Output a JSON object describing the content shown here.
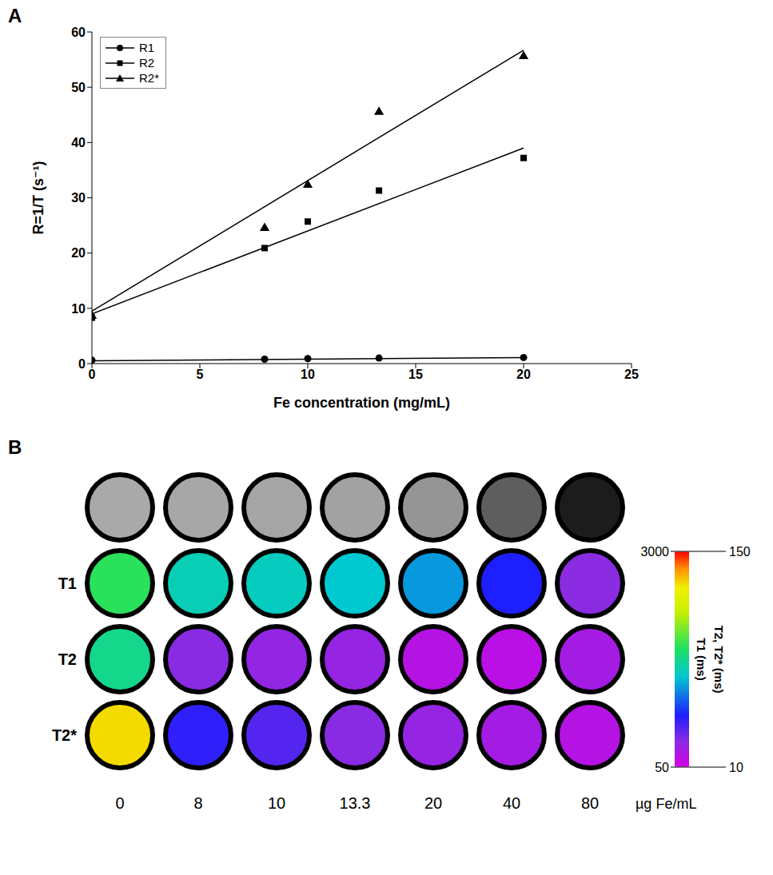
{
  "chart_data": [
    {
      "panel": "A",
      "type": "scatter",
      "x_label": "Fe concentration (mg/mL)",
      "y_label": "R=1/T (s⁻¹)",
      "x": [
        0,
        8,
        10,
        13.3,
        20
      ],
      "fit_x": [
        0,
        20
      ],
      "series": [
        {
          "name": "R1",
          "color": "#000000",
          "marker": "circle",
          "values": [
            0.6,
            0.8,
            0.9,
            1.0,
            1.1
          ],
          "fit": [
            0.5,
            1.1
          ]
        },
        {
          "name": "R2",
          "color": "#000000",
          "marker": "square",
          "values": [
            8.3,
            20.9,
            25.7,
            31.3,
            37.2
          ],
          "fit": [
            9.0,
            39.0
          ]
        },
        {
          "name": "R2*",
          "color": "#000000",
          "marker": "triangle",
          "values": [
            8.6,
            24.5,
            32.3,
            45.5,
            55.6
          ],
          "fit": [
            9.5,
            56.7
          ]
        }
      ],
      "xlim": [
        0,
        25
      ],
      "xticks": [
        0,
        5,
        10,
        15,
        20,
        25
      ],
      "ylim": [
        0,
        60
      ],
      "yticks": [
        0,
        10,
        20,
        30,
        40,
        50,
        60
      ],
      "grid": false,
      "legend": "upper left"
    },
    {
      "panel": "B",
      "type": "heatmap",
      "columns": [
        0,
        8,
        10,
        13.3,
        20,
        40,
        80
      ],
      "column_unit": "µg Fe/mL",
      "rows": [
        {
          "name": null,
          "colors": [
            "#a9a9a9",
            "#a7a7a7",
            "#a5a5a5",
            "#a2a2a2",
            "#959595",
            "#5e5e5e",
            "#1c1c1c"
          ]
        },
        {
          "name": "T1",
          "values": [
            1700,
            1380,
            1350,
            1290,
            1140,
            760,
            400
          ]
        },
        {
          "name": "T2",
          "values": [
            80,
            27,
            25,
            24,
            17,
            16,
            21
          ]
        },
        {
          "name": "T2*",
          "values": [
            129,
            41,
            35,
            27,
            24,
            21,
            17
          ]
        }
      ],
      "colorbar": [
        {
          "label": "T1 (ms)",
          "range": [
            50,
            3000
          ],
          "ticks": [
            50,
            3000
          ],
          "rows": [
            "T1"
          ]
        },
        {
          "label": "T2, T2* (ms)",
          "range": [
            10,
            150
          ],
          "ticks": [
            10,
            150
          ],
          "rows": [
            "T2",
            "T2*"
          ]
        }
      ]
    }
  ]
}
